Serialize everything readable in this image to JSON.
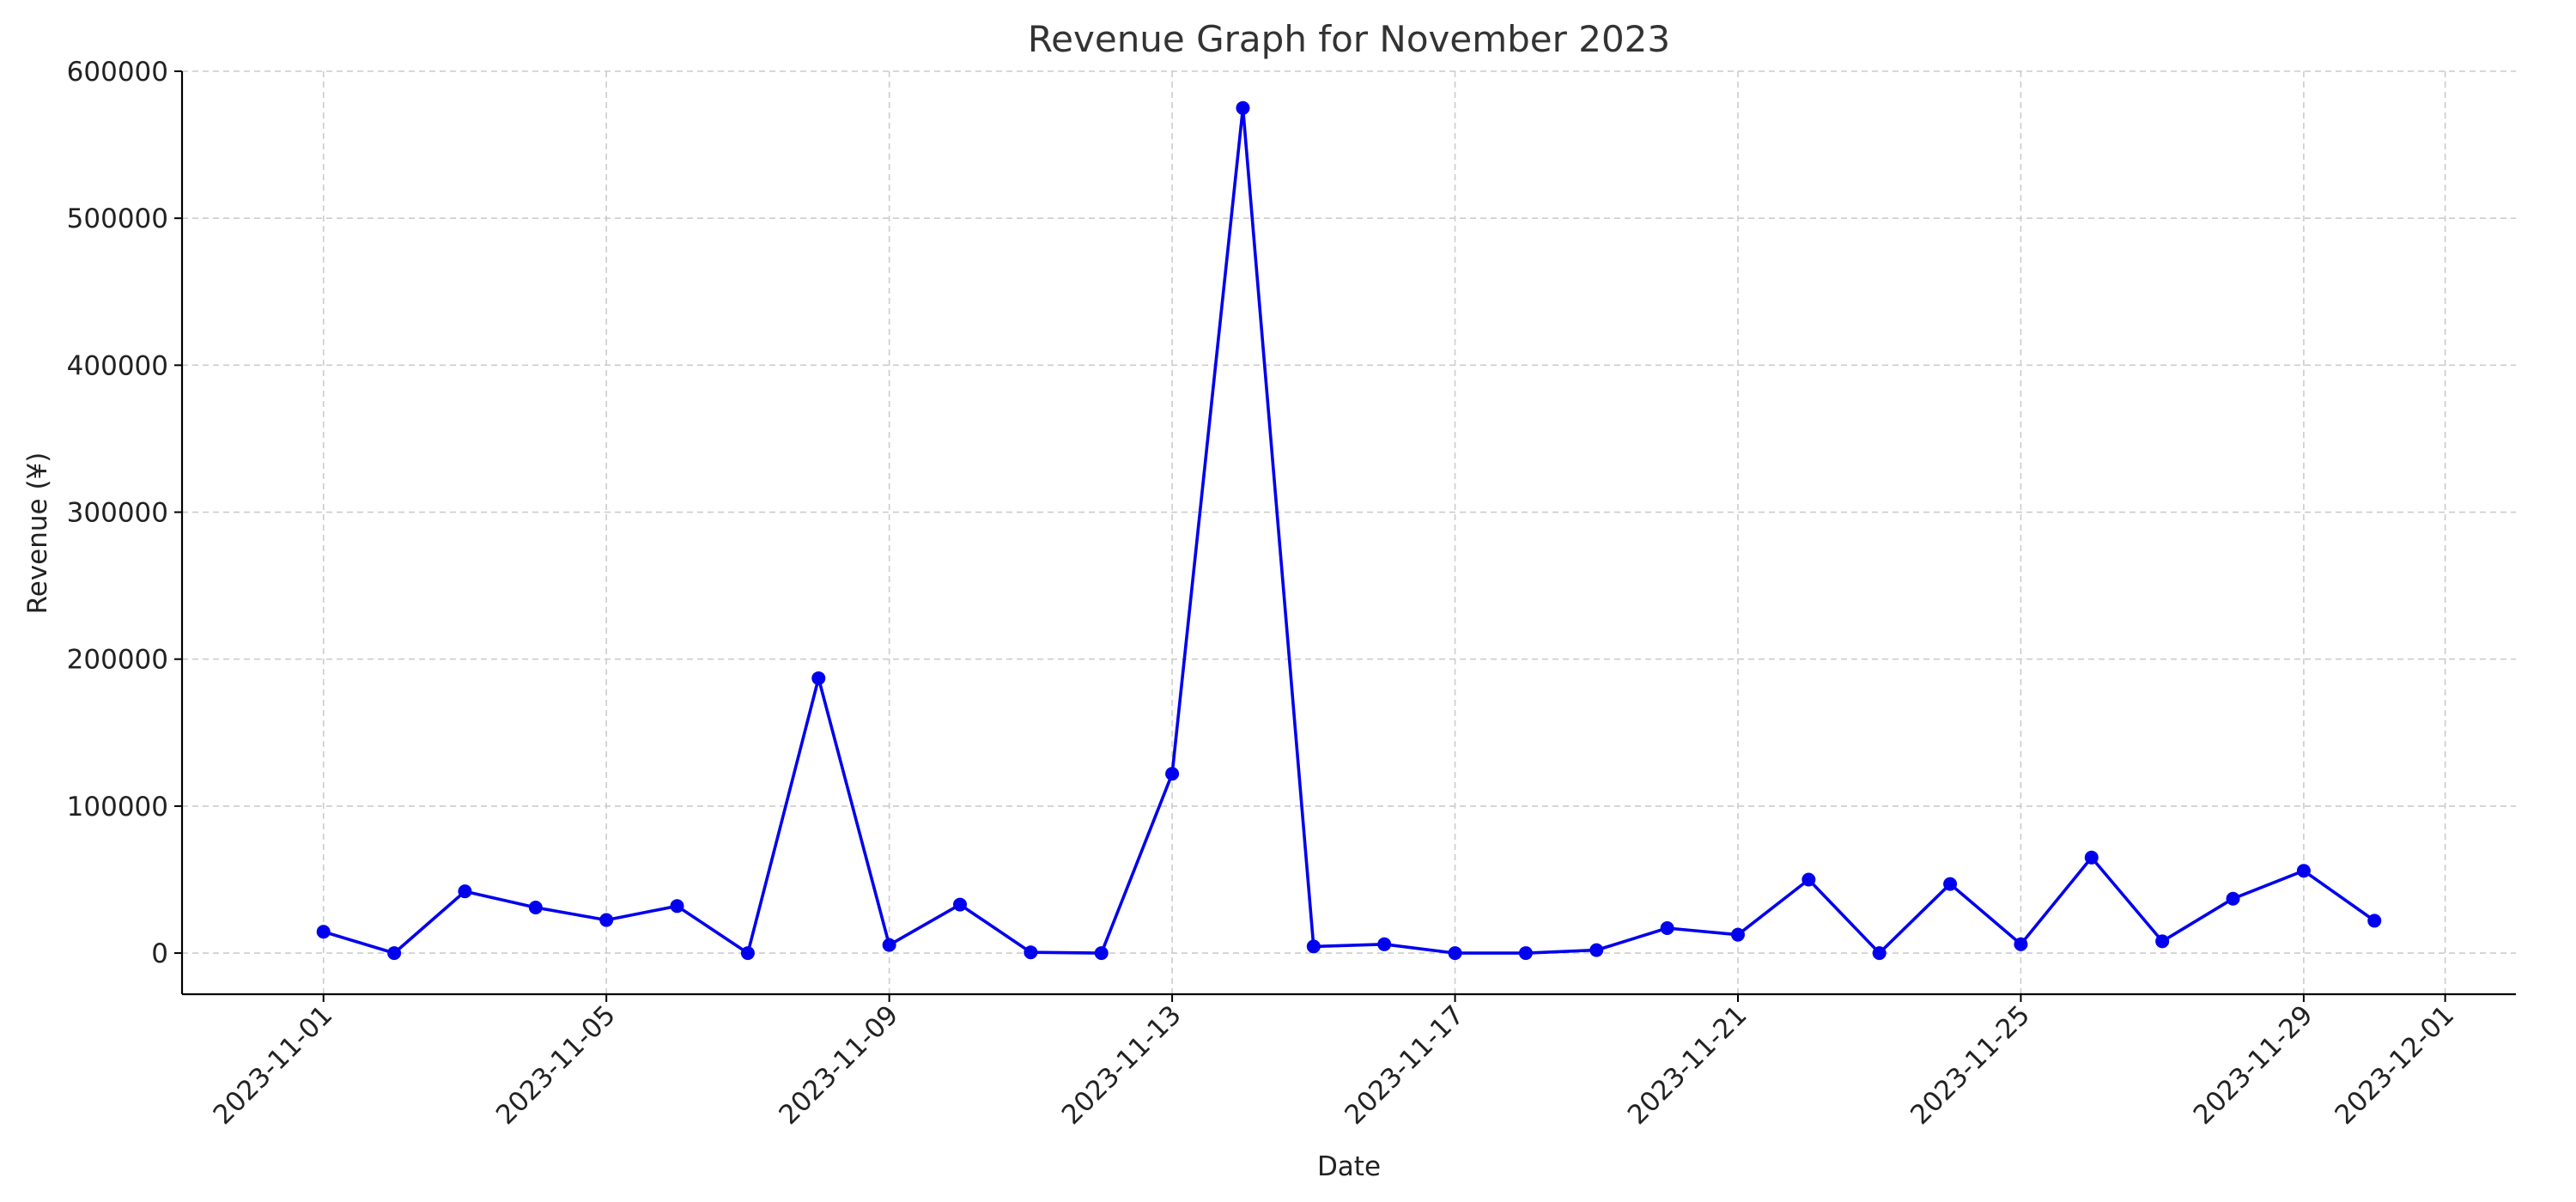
{
  "chart_data": {
    "type": "line",
    "title": "Revenue Graph for November 2023",
    "xlabel": "Date",
    "ylabel": "Revenue (¥)",
    "grid": true,
    "legend": "none",
    "ylim": [
      -28000,
      600000
    ],
    "xlim": [
      "2023-10-30",
      "2023-12-02"
    ],
    "y_ticks": [
      0,
      100000,
      200000,
      300000,
      400000,
      500000,
      600000
    ],
    "x_ticks": [
      "2023-11-01",
      "2023-11-05",
      "2023-11-09",
      "2023-11-13",
      "2023-11-17",
      "2023-11-21",
      "2023-11-25",
      "2023-11-29",
      "2023-12-01"
    ],
    "series": [
      {
        "color": "#0000ee",
        "x": [
          "2023-11-01",
          "2023-11-02",
          "2023-11-03",
          "2023-11-04",
          "2023-11-05",
          "2023-11-06",
          "2023-11-07",
          "2023-11-08",
          "2023-11-09",
          "2023-11-10",
          "2023-11-11",
          "2023-11-12",
          "2023-11-13",
          "2023-11-14",
          "2023-11-15",
          "2023-11-16",
          "2023-11-17",
          "2023-11-18",
          "2023-11-19",
          "2023-11-20",
          "2023-11-21",
          "2023-11-22",
          "2023-11-23",
          "2023-11-24",
          "2023-11-25",
          "2023-11-26",
          "2023-11-27",
          "2023-11-28",
          "2023-11-29",
          "2023-11-30"
        ],
        "values": [
          14500,
          0,
          42000,
          31000,
          22500,
          32000,
          0,
          187000,
          5500,
          33000,
          500,
          0,
          122000,
          575000,
          4500,
          6000,
          0,
          0,
          2000,
          17000,
          12500,
          50000,
          0,
          47000,
          6000,
          65000,
          8000,
          37000,
          56000,
          22000
        ]
      }
    ]
  }
}
